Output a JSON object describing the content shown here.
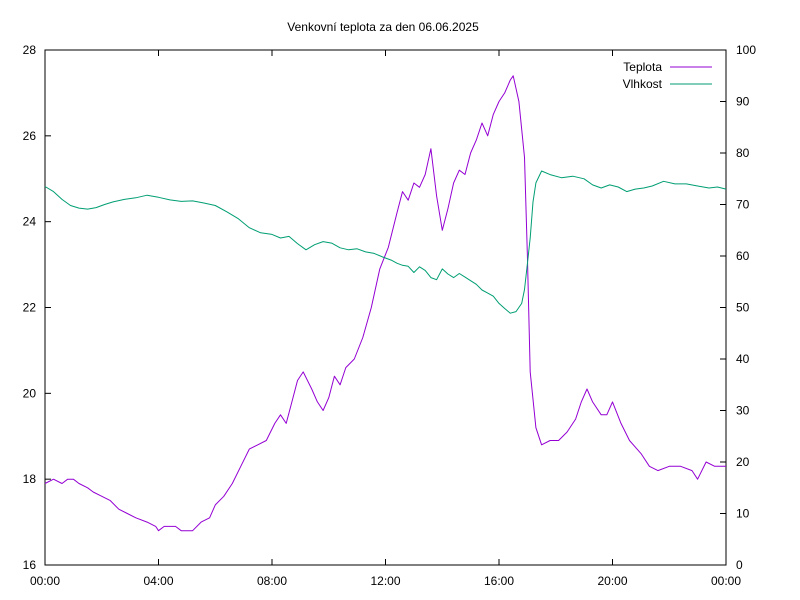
{
  "chart_data": {
    "type": "line",
    "title": "Venkovní teplota za den 06.06.2025",
    "xlabel": "",
    "ylabel": "",
    "y2label": "",
    "grid": false,
    "legend_position": "top-right",
    "x_range_hours": [
      0,
      24
    ],
    "x_ticks": [
      {
        "hour": 0,
        "label": "00:00"
      },
      {
        "hour": 4,
        "label": "04:00"
      },
      {
        "hour": 8,
        "label": "08:00"
      },
      {
        "hour": 12,
        "label": "12:00"
      },
      {
        "hour": 16,
        "label": "16:00"
      },
      {
        "hour": 20,
        "label": "20:00"
      },
      {
        "hour": 24,
        "label": "00:00"
      }
    ],
    "ylim_left": [
      16,
      28
    ],
    "y_ticks_left": [
      16,
      18,
      20,
      22,
      24,
      26,
      28
    ],
    "ylim_right": [
      0,
      100
    ],
    "y_ticks_right": [
      0,
      10,
      20,
      30,
      40,
      50,
      60,
      70,
      80,
      90,
      100
    ],
    "series": [
      {
        "name": "Teplota",
        "axis": "left",
        "color": "#9400d3",
        "points": [
          [
            0.0,
            17.9
          ],
          [
            0.3,
            18.0
          ],
          [
            0.6,
            17.9
          ],
          [
            0.8,
            18.0
          ],
          [
            1.0,
            18.0
          ],
          [
            1.2,
            17.9
          ],
          [
            1.5,
            17.8
          ],
          [
            1.7,
            17.7
          ],
          [
            2.0,
            17.6
          ],
          [
            2.3,
            17.5
          ],
          [
            2.6,
            17.3
          ],
          [
            2.9,
            17.2
          ],
          [
            3.2,
            17.1
          ],
          [
            3.6,
            17.0
          ],
          [
            3.9,
            16.9
          ],
          [
            4.0,
            16.8
          ],
          [
            4.2,
            16.9
          ],
          [
            4.6,
            16.9
          ],
          [
            4.8,
            16.8
          ],
          [
            5.2,
            16.8
          ],
          [
            5.5,
            17.0
          ],
          [
            5.8,
            17.1
          ],
          [
            6.0,
            17.4
          ],
          [
            6.3,
            17.6
          ],
          [
            6.6,
            17.9
          ],
          [
            6.9,
            18.3
          ],
          [
            7.2,
            18.7
          ],
          [
            7.5,
            18.8
          ],
          [
            7.8,
            18.9
          ],
          [
            8.1,
            19.3
          ],
          [
            8.3,
            19.5
          ],
          [
            8.5,
            19.3
          ],
          [
            8.7,
            19.8
          ],
          [
            8.9,
            20.3
          ],
          [
            9.1,
            20.5
          ],
          [
            9.4,
            20.1
          ],
          [
            9.6,
            19.8
          ],
          [
            9.8,
            19.6
          ],
          [
            10.0,
            19.9
          ],
          [
            10.2,
            20.4
          ],
          [
            10.4,
            20.2
          ],
          [
            10.6,
            20.6
          ],
          [
            10.9,
            20.8
          ],
          [
            11.2,
            21.3
          ],
          [
            11.5,
            22.0
          ],
          [
            11.8,
            22.9
          ],
          [
            12.1,
            23.4
          ],
          [
            12.4,
            24.2
          ],
          [
            12.6,
            24.7
          ],
          [
            12.8,
            24.5
          ],
          [
            13.0,
            24.9
          ],
          [
            13.2,
            24.8
          ],
          [
            13.4,
            25.1
          ],
          [
            13.6,
            25.7
          ],
          [
            13.8,
            24.6
          ],
          [
            14.0,
            23.8
          ],
          [
            14.2,
            24.3
          ],
          [
            14.4,
            24.9
          ],
          [
            14.6,
            25.2
          ],
          [
            14.8,
            25.1
          ],
          [
            15.0,
            25.6
          ],
          [
            15.2,
            25.9
          ],
          [
            15.4,
            26.3
          ],
          [
            15.6,
            26.0
          ],
          [
            15.8,
            26.5
          ],
          [
            16.0,
            26.8
          ],
          [
            16.2,
            27.0
          ],
          [
            16.4,
            27.3
          ],
          [
            16.5,
            27.4
          ],
          [
            16.7,
            26.8
          ],
          [
            16.9,
            25.5
          ],
          [
            17.0,
            23.2
          ],
          [
            17.1,
            20.5
          ],
          [
            17.3,
            19.2
          ],
          [
            17.5,
            18.8
          ],
          [
            17.8,
            18.9
          ],
          [
            18.1,
            18.9
          ],
          [
            18.4,
            19.1
          ],
          [
            18.7,
            19.4
          ],
          [
            18.9,
            19.8
          ],
          [
            19.1,
            20.1
          ],
          [
            19.3,
            19.8
          ],
          [
            19.6,
            19.5
          ],
          [
            19.8,
            19.5
          ],
          [
            20.0,
            19.8
          ],
          [
            20.3,
            19.3
          ],
          [
            20.6,
            18.9
          ],
          [
            21.0,
            18.6
          ],
          [
            21.3,
            18.3
          ],
          [
            21.6,
            18.2
          ],
          [
            22.0,
            18.3
          ],
          [
            22.4,
            18.3
          ],
          [
            22.8,
            18.2
          ],
          [
            23.0,
            18.0
          ],
          [
            23.3,
            18.4
          ],
          [
            23.6,
            18.3
          ],
          [
            24.0,
            18.3
          ]
        ]
      },
      {
        "name": "Vlhkost",
        "axis": "right",
        "color": "#009e73",
        "points": [
          [
            0.0,
            73.5
          ],
          [
            0.3,
            72.5
          ],
          [
            0.6,
            71.0
          ],
          [
            0.9,
            69.8
          ],
          [
            1.2,
            69.3
          ],
          [
            1.5,
            69.1
          ],
          [
            1.8,
            69.4
          ],
          [
            2.1,
            70.0
          ],
          [
            2.4,
            70.5
          ],
          [
            2.8,
            71.0
          ],
          [
            3.2,
            71.3
          ],
          [
            3.6,
            71.8
          ],
          [
            4.0,
            71.4
          ],
          [
            4.4,
            70.9
          ],
          [
            4.8,
            70.6
          ],
          [
            5.2,
            70.7
          ],
          [
            5.6,
            70.3
          ],
          [
            6.0,
            69.8
          ],
          [
            6.4,
            68.6
          ],
          [
            6.8,
            67.3
          ],
          [
            7.2,
            65.5
          ],
          [
            7.6,
            64.5
          ],
          [
            8.0,
            64.2
          ],
          [
            8.3,
            63.5
          ],
          [
            8.6,
            63.8
          ],
          [
            8.9,
            62.4
          ],
          [
            9.2,
            61.2
          ],
          [
            9.5,
            62.2
          ],
          [
            9.8,
            62.8
          ],
          [
            10.1,
            62.5
          ],
          [
            10.4,
            61.6
          ],
          [
            10.7,
            61.2
          ],
          [
            11.0,
            61.4
          ],
          [
            11.3,
            60.8
          ],
          [
            11.6,
            60.5
          ],
          [
            11.9,
            59.8
          ],
          [
            12.2,
            59.2
          ],
          [
            12.4,
            58.6
          ],
          [
            12.6,
            58.2
          ],
          [
            12.8,
            58.0
          ],
          [
            13.0,
            56.8
          ],
          [
            13.2,
            57.9
          ],
          [
            13.4,
            57.2
          ],
          [
            13.6,
            55.8
          ],
          [
            13.8,
            55.4
          ],
          [
            14.0,
            57.5
          ],
          [
            14.2,
            56.5
          ],
          [
            14.4,
            55.8
          ],
          [
            14.6,
            56.6
          ],
          [
            14.8,
            55.9
          ],
          [
            15.0,
            55.2
          ],
          [
            15.2,
            54.5
          ],
          [
            15.4,
            53.4
          ],
          [
            15.6,
            52.8
          ],
          [
            15.8,
            52.2
          ],
          [
            16.0,
            50.8
          ],
          [
            16.2,
            49.8
          ],
          [
            16.4,
            48.9
          ],
          [
            16.6,
            49.2
          ],
          [
            16.8,
            50.8
          ],
          [
            16.9,
            53.5
          ],
          [
            17.0,
            58.5
          ],
          [
            17.1,
            63.5
          ],
          [
            17.2,
            70.5
          ],
          [
            17.3,
            74.2
          ],
          [
            17.5,
            76.5
          ],
          [
            17.8,
            75.8
          ],
          [
            18.2,
            75.2
          ],
          [
            18.6,
            75.5
          ],
          [
            19.0,
            75.0
          ],
          [
            19.3,
            73.8
          ],
          [
            19.6,
            73.2
          ],
          [
            19.9,
            73.8
          ],
          [
            20.2,
            73.4
          ],
          [
            20.5,
            72.5
          ],
          [
            20.8,
            73.0
          ],
          [
            21.1,
            73.2
          ],
          [
            21.4,
            73.6
          ],
          [
            21.8,
            74.5
          ],
          [
            22.2,
            74.0
          ],
          [
            22.6,
            74.0
          ],
          [
            23.0,
            73.6
          ],
          [
            23.4,
            73.2
          ],
          [
            23.7,
            73.4
          ],
          [
            24.0,
            73.0
          ]
        ]
      }
    ]
  }
}
